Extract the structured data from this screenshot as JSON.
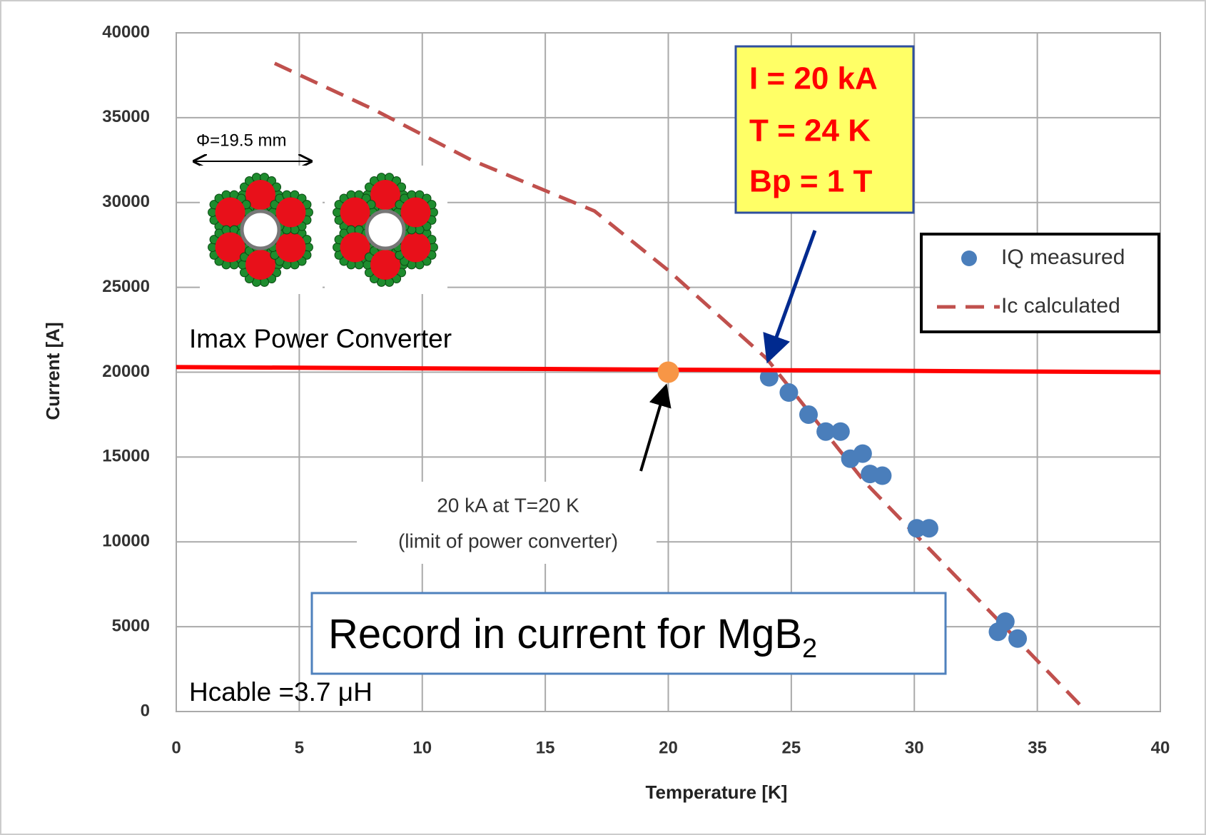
{
  "chart_data": {
    "type": "scatter",
    "xlabel": "Temperature [K]",
    "ylabel": "Current [A]",
    "xlim": [
      0,
      40
    ],
    "ylim": [
      0,
      40000
    ],
    "xticks": [
      0,
      5,
      10,
      15,
      20,
      25,
      30,
      35,
      40
    ],
    "yticks": [
      0,
      5000,
      10000,
      15000,
      20000,
      25000,
      30000,
      35000,
      40000
    ],
    "grid": true,
    "legend": "upper right",
    "series": [
      {
        "name": "IQ measured",
        "type": "scatter",
        "color": "#4a7ebb",
        "x": [
          24.1,
          24.9,
          25.7,
          26.4,
          27.0,
          27.4,
          27.9,
          28.2,
          28.7,
          30.1,
          30.6,
          33.4,
          33.7,
          34.2
        ],
        "values": [
          19700,
          18800,
          17500,
          16500,
          16500,
          14900,
          15200,
          14000,
          13900,
          10800,
          10800,
          4700,
          5300,
          4300
        ]
      },
      {
        "name": "Ic calculated",
        "type": "line",
        "dashed": true,
        "color": "#c0504d",
        "x": [
          4,
          8,
          12,
          17,
          20,
          24,
          28,
          31,
          34,
          37
        ],
        "values": [
          38200,
          35500,
          32500,
          29500,
          26000,
          20800,
          13500,
          9000,
          4500,
          0
        ]
      }
    ],
    "limit_line": {
      "label": "Imax Power Converter",
      "color": "#ff0000",
      "x": [
        0,
        40
      ],
      "values": [
        20300,
        20000
      ]
    },
    "limit_point": {
      "x": 20,
      "value": 20000,
      "color": "#f79646",
      "label": [
        "20 kA at T=20 K",
        "(limit of power converter)"
      ]
    },
    "record_box": {
      "text": "Record in current for MgB",
      "subscript": "2"
    },
    "result_box": [
      "I = 20 kA",
      "T = 24 K",
      "Bp = 1 T"
    ],
    "inductance": "Hcable =3.7 μH",
    "diameter": "Φ=19.5 mm"
  }
}
